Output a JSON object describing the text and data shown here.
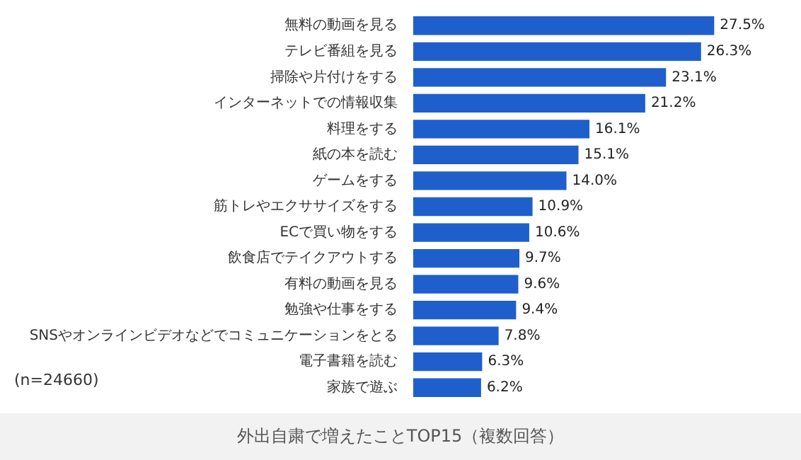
{
  "chart_data": {
    "type": "bar",
    "orientation": "horizontal",
    "title": "外出自粛で増えたことTOP15（複数回答）",
    "categories": [
      "無料の動画を見る",
      "テレビ番組を見る",
      "掃除や片付けをする",
      "インターネットでの情報収集",
      "料理をする",
      "紙の本を読む",
      "ゲームをする",
      "筋トレやエクササイズをする",
      "ECで買い物をする",
      "飲食店でテイクアウトする",
      "有料の動画を見る",
      "勉強や仕事をする",
      "SNSやオンラインビデオなどでコミュニケーションをとる",
      "電子書籍を読む",
      "家族で遊ぶ"
    ],
    "values": [
      27.5,
      26.3,
      23.1,
      21.2,
      16.1,
      15.1,
      14.0,
      10.9,
      10.6,
      9.7,
      9.6,
      9.4,
      7.8,
      6.3,
      6.2
    ],
    "value_labels": [
      "27.5%",
      "26.3%",
      "23.1%",
      "21.2%",
      "16.1%",
      "15.1%",
      "14.0%",
      "10.9%",
      "10.6%",
      "9.7%",
      "9.6%",
      "9.4%",
      "7.8%",
      "6.3%",
      "6.2%"
    ],
    "color": "#1f5fcc",
    "annotations": [
      "(n=24660)"
    ],
    "legend": false
  }
}
